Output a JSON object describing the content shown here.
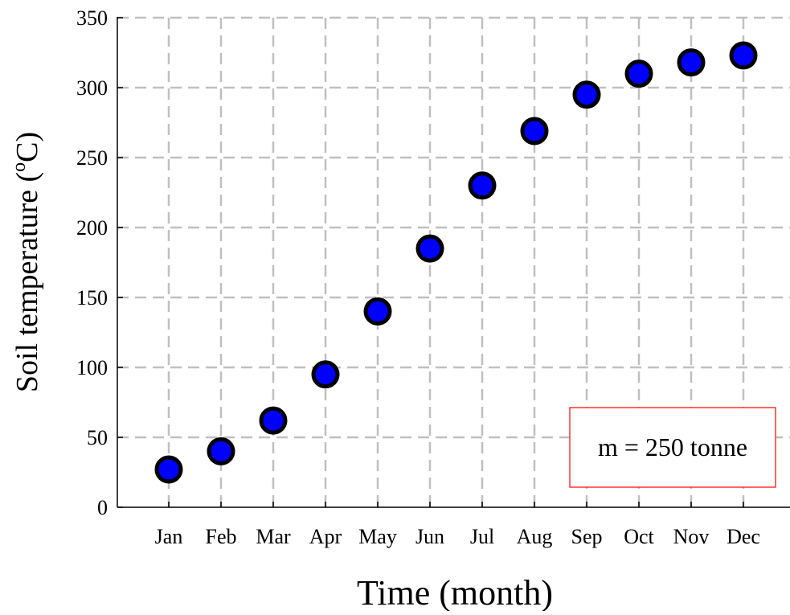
{
  "chart_data": {
    "type": "scatter",
    "categories": [
      "Jan",
      "Feb",
      "Mar",
      "Apr",
      "May",
      "Jun",
      "Jul",
      "Aug",
      "Sep",
      "Oct",
      "Nov",
      "Dec"
    ],
    "series": [
      {
        "values": [
          27,
          40,
          62,
          95,
          140,
          185,
          230,
          269,
          295,
          310,
          318,
          323
        ]
      }
    ],
    "xlabel": "Time (month)",
    "ylabel": "Soil temperature (",
    "ylabel_sup": "o",
    "ylabel_tail": "C)",
    "ylim": [
      0,
      350
    ],
    "yticks": [
      0,
      50,
      100,
      150,
      200,
      250,
      300,
      350
    ],
    "grid": true,
    "grid_style": "dashed",
    "marker_fill": "#0000ff",
    "marker_edge": "#000000",
    "grid_color": "#c0c0c0",
    "annotation": {
      "text": "m = 250 tonne",
      "placement": "bottom-right",
      "border_color": "#ff0000"
    }
  }
}
